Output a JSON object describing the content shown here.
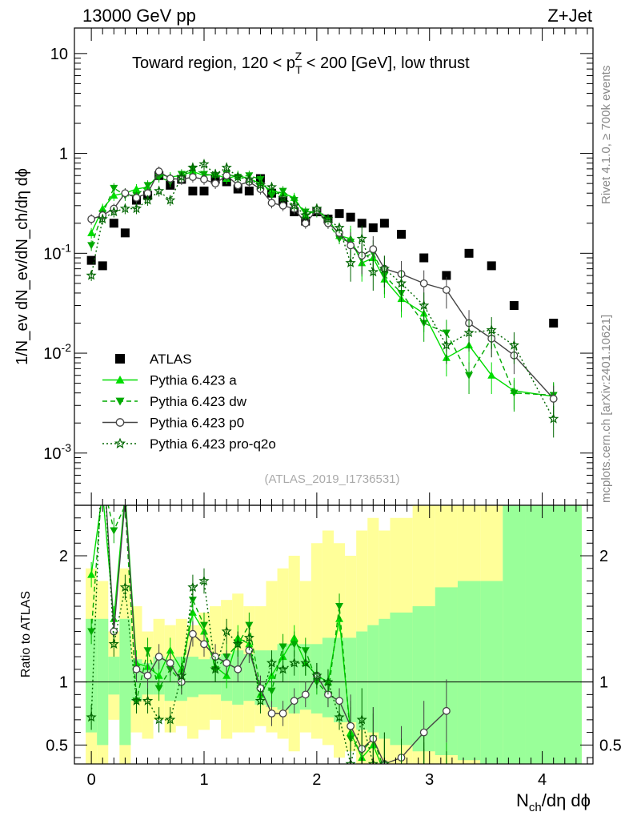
{
  "header": {
    "energy": "13000 GeV pp",
    "process": "Z+Jet"
  },
  "side_text": {
    "rivet": "Rivet 4.1.0, ≥ 700k events",
    "mcplots": "mcplots.cern.ch [arXiv:2401.10621]"
  },
  "chart_data": [
    {
      "type": "scatter",
      "panel": "main",
      "title_pre": "Toward region, 120 < p",
      "title_sub": "T",
      "title_sup": "Z",
      "title_post": " < 200 [GeV], low thrust",
      "ylabel": "1/N_ev dN_ev/dN_ch/dη dϕ",
      "yscale": "log",
      "ylim": [
        0.0003,
        18
      ],
      "xlim": [
        -0.15,
        4.45
      ],
      "yticks": [
        {
          "v": 10,
          "b": "10",
          "e": ""
        },
        {
          "v": 1,
          "b": "1",
          "e": ""
        },
        {
          "v": 0.1,
          "b": "10",
          "e": "-1"
        },
        {
          "v": 0.01,
          "b": "10",
          "e": "-2"
        },
        {
          "v": 0.001,
          "b": "10",
          "e": "-3"
        }
      ],
      "watermark": "(ATLAS_2019_I1736531)",
      "legend_position": "lower-left",
      "series": [
        {
          "name": "ATLAS",
          "style": "data",
          "color": "#000000",
          "x": [
            0,
            0.1,
            0.2,
            0.3,
            0.4,
            0.5,
            0.6,
            0.7,
            0.8,
            0.9,
            1.0,
            1.1,
            1.2,
            1.3,
            1.4,
            1.5,
            1.6,
            1.7,
            1.8,
            1.9,
            2.0,
            2.1,
            2.2,
            2.3,
            2.4,
            2.5,
            2.6,
            2.75,
            2.95,
            3.15,
            3.35,
            3.55,
            3.75,
            4.1
          ],
          "y": [
            0.085,
            0.075,
            0.2,
            0.16,
            0.34,
            0.38,
            0.6,
            0.48,
            0.55,
            0.42,
            0.42,
            0.55,
            0.52,
            0.44,
            0.42,
            0.56,
            0.4,
            0.33,
            0.26,
            0.21,
            0.26,
            0.22,
            0.25,
            0.23,
            0.2,
            0.18,
            0.2,
            0.155,
            0.09,
            0.06,
            0.1,
            0.075,
            0.03,
            0.02
          ]
        },
        {
          "name": "Pythia 6.423 a",
          "style": "line-triangle",
          "color": "#00dd00",
          "x": [
            0,
            0.1,
            0.2,
            0.3,
            0.4,
            0.5,
            0.6,
            0.7,
            0.8,
            0.9,
            1.0,
            1.1,
            1.2,
            1.3,
            1.4,
            1.5,
            1.6,
            1.7,
            1.8,
            1.9,
            2.0,
            2.1,
            2.2,
            2.3,
            2.4,
            2.5,
            2.6,
            2.75,
            2.95,
            3.15,
            3.35,
            3.55,
            3.75,
            4.1
          ],
          "y": [
            0.16,
            0.28,
            0.38,
            0.4,
            0.44,
            0.46,
            0.62,
            0.58,
            0.6,
            0.66,
            0.6,
            0.62,
            0.56,
            0.6,
            0.56,
            0.5,
            0.42,
            0.4,
            0.36,
            0.24,
            0.27,
            0.22,
            0.15,
            0.14,
            0.08,
            0.09,
            0.055,
            0.035,
            0.025,
            0.009,
            0.012,
            0.006,
            0.0042,
            0.0037
          ]
        },
        {
          "name": "Pythia 6.423 dw",
          "style": "dashed-invtriangle",
          "color": "#00aa00",
          "x": [
            0,
            0.1,
            0.2,
            0.3,
            0.4,
            0.5,
            0.6,
            0.7,
            0.8,
            0.9,
            1.0,
            1.1,
            1.2,
            1.3,
            1.4,
            1.5,
            1.6,
            1.7,
            1.8,
            1.9,
            2.0,
            2.1,
            2.2,
            2.3,
            2.4,
            2.5,
            2.6,
            2.75,
            2.95,
            3.15,
            3.35,
            3.55,
            3.75,
            4.1
          ],
          "y": [
            0.12,
            0.25,
            0.45,
            0.38,
            0.38,
            0.48,
            0.58,
            0.52,
            0.62,
            0.7,
            0.62,
            0.6,
            0.62,
            0.58,
            0.6,
            0.55,
            0.38,
            0.42,
            0.34,
            0.26,
            0.26,
            0.2,
            0.14,
            0.13,
            0.09,
            0.1,
            0.06,
            0.04,
            0.02,
            0.016,
            0.006,
            0.014,
            0.004,
            0.0038
          ]
        },
        {
          "name": "Pythia 6.423 p0",
          "style": "line-circle",
          "color": "#444444",
          "x": [
            0,
            0.1,
            0.2,
            0.3,
            0.4,
            0.5,
            0.6,
            0.7,
            0.8,
            0.9,
            1.0,
            1.1,
            1.2,
            1.3,
            1.4,
            1.5,
            1.6,
            1.7,
            1.8,
            1.9,
            2.0,
            2.1,
            2.2,
            2.3,
            2.4,
            2.5,
            2.6,
            2.75,
            2.95,
            3.15,
            3.35,
            3.55,
            3.75,
            4.1
          ],
          "y": [
            0.22,
            0.24,
            0.28,
            0.4,
            0.36,
            0.4,
            0.66,
            0.56,
            0.55,
            0.58,
            0.55,
            0.5,
            0.6,
            0.48,
            0.52,
            0.44,
            0.32,
            0.3,
            0.28,
            0.2,
            0.27,
            0.2,
            0.16,
            0.12,
            0.095,
            0.11,
            0.07,
            0.062,
            0.05,
            0.043,
            0.02,
            0.014,
            0.0095,
            0.0035
          ]
        },
        {
          "name": "Pythia 6.423 pro-q2o",
          "style": "dotted-star",
          "color": "#006600",
          "x": [
            0,
            0.1,
            0.2,
            0.3,
            0.4,
            0.5,
            0.6,
            0.7,
            0.8,
            0.9,
            1.0,
            1.1,
            1.2,
            1.3,
            1.4,
            1.5,
            1.6,
            1.7,
            1.8,
            1.9,
            2.0,
            2.1,
            2.2,
            2.3,
            2.4,
            2.5,
            2.6,
            2.75,
            2.95,
            3.15,
            3.35,
            3.55,
            3.75,
            4.1
          ],
          "y": [
            0.06,
            0.22,
            0.26,
            0.28,
            0.28,
            0.34,
            0.42,
            0.34,
            0.58,
            0.72,
            0.78,
            0.62,
            0.72,
            0.58,
            0.55,
            0.48,
            0.46,
            0.36,
            0.3,
            0.24,
            0.28,
            0.22,
            0.18,
            0.08,
            0.14,
            0.065,
            0.07,
            0.05,
            0.03,
            0.012,
            0.016,
            0.017,
            0.012,
            0.0022
          ]
        }
      ]
    },
    {
      "type": "scatter",
      "panel": "ratio",
      "ylabel": "Ratio to ATLAS",
      "xlabel_base": "N",
      "xlabel_sub": "ch",
      "xlabel_post": "/dη dϕ",
      "xlim": [
        -0.15,
        4.45
      ],
      "ylim": [
        0.35,
        2.4
      ],
      "xticks": [
        0,
        1,
        2,
        3,
        4
      ],
      "yticks": [
        {
          "v": 2,
          "label": "2"
        },
        {
          "v": 1,
          "label": "1"
        },
        {
          "v": 0.5,
          "label": "0.5"
        }
      ],
      "band_edges": [
        -0.05,
        0.05,
        0.15,
        0.25,
        0.35,
        0.45,
        0.55,
        0.65,
        0.75,
        0.85,
        0.95,
        1.05,
        1.15,
        1.25,
        1.35,
        1.45,
        1.55,
        1.65,
        1.75,
        1.85,
        1.95,
        2.05,
        2.15,
        2.25,
        2.35,
        2.45,
        2.55,
        2.65,
        2.85,
        3.05,
        3.25,
        3.45,
        3.65,
        3.85,
        4.35
      ],
      "band_green_lo": [
        0.6,
        0.5,
        0.9,
        0.5,
        0.85,
        0.9,
        0.9,
        0.85,
        0.85,
        0.88,
        0.9,
        0.9,
        0.85,
        0.82,
        0.85,
        0.82,
        0.8,
        0.78,
        0.75,
        0.78,
        0.75,
        0.72,
        0.68,
        0.68,
        0.62,
        0.6,
        0.55,
        0.5,
        0.45,
        0.42,
        0.38,
        0.3,
        0.35,
        0.2
      ],
      "band_green_hi": [
        1.5,
        1.5,
        1.2,
        1.5,
        1.18,
        1.15,
        1.2,
        1.18,
        1.2,
        1.2,
        1.18,
        1.2,
        1.22,
        1.25,
        1.22,
        1.25,
        1.25,
        1.3,
        1.3,
        1.3,
        1.3,
        1.35,
        1.35,
        1.35,
        1.4,
        1.45,
        1.5,
        1.55,
        1.6,
        1.75,
        1.8,
        1.8,
        2.5,
        2.5
      ],
      "band_yellow_lo": [
        0.3,
        0.35,
        0.7,
        0.3,
        0.6,
        0.55,
        0.7,
        0.6,
        0.65,
        0.55,
        0.62,
        0.7,
        0.55,
        0.6,
        0.6,
        0.65,
        0.6,
        0.55,
        0.45,
        0.6,
        0.55,
        0.5,
        0.4,
        0.45,
        0.3,
        0.25,
        0.3,
        0.2,
        0.2,
        0.15,
        0.15,
        0.2,
        0.2,
        0.1
      ],
      "band_yellow_hi": [
        1.9,
        1.8,
        1.4,
        1.9,
        1.6,
        1.4,
        1.5,
        1.45,
        1.5,
        1.45,
        1.55,
        1.6,
        1.65,
        1.7,
        1.6,
        1.6,
        1.8,
        1.9,
        2.0,
        1.8,
        2.1,
        2.2,
        2.1,
        2.0,
        2.2,
        2.3,
        2.2,
        2.3,
        2.4,
        2.4,
        2.4,
        2.4,
        2.6,
        2.6
      ],
      "ratio_series": [
        {
          "name": "Pythia 6.423 a",
          "style": "line-triangle",
          "color": "#00dd00",
          "x": [
            0,
            0.1,
            0.2,
            0.3,
            0.4,
            0.5,
            0.6,
            0.7,
            0.8,
            0.9,
            1.0,
            1.1,
            1.2,
            1.3,
            1.4,
            1.5,
            1.6,
            1.7,
            1.8,
            1.9,
            2.0,
            2.1,
            2.2,
            2.3,
            2.4,
            2.5,
            2.6,
            2.75,
            2.95,
            3.15
          ],
          "y": [
            1.85,
            2.5,
            1.5,
            2.5,
            1.15,
            1.12,
            1.05,
            1.25,
            1.1,
            1.55,
            1.4,
            1.12,
            1.05,
            1.35,
            1.3,
            0.9,
            1.05,
            1.2,
            1.35,
            1.15,
            1.05,
            1.0,
            1.5,
            0.6,
            0.4,
            0.5,
            0.28,
            0.22,
            0.27,
            0.15
          ]
        },
        {
          "name": "Pythia 6.423 dw",
          "style": "dashed-invtriangle",
          "color": "#00aa00",
          "x": [
            0,
            0.1,
            0.2,
            0.3,
            0.4,
            0.5,
            0.6,
            0.7,
            0.8,
            0.9,
            1.0,
            1.1,
            1.2,
            1.3,
            1.4,
            1.5,
            1.6,
            1.7,
            1.8,
            1.9,
            2.0,
            2.1,
            2.2,
            2.3,
            2.4,
            2.5,
            2.6,
            2.75,
            2.95,
            3.15
          ],
          "y": [
            1.4,
            2.6,
            2.2,
            2.4,
            0.85,
            1.25,
            0.95,
            1.1,
            1.0,
            1.65,
            1.45,
            1.1,
            1.2,
            1.3,
            1.45,
            0.95,
            0.93,
            1.28,
            1.3,
            1.25,
            1.0,
            0.9,
            1.6,
            0.55,
            0.45,
            0.55,
            0.3,
            0.26,
            0.22,
            0.27
          ]
        },
        {
          "name": "Pythia 6.423 p0",
          "style": "line-circle",
          "color": "#444444",
          "x": [
            0,
            0.1,
            0.2,
            0.3,
            0.4,
            0.5,
            0.6,
            0.7,
            0.8,
            0.9,
            1.0,
            1.1,
            1.2,
            1.3,
            1.4,
            1.5,
            1.6,
            1.7,
            1.8,
            1.9,
            2.0,
            2.1,
            2.2,
            2.3,
            2.4,
            2.5,
            2.6,
            2.75,
            2.95,
            3.15
          ],
          "y": [
            2.6,
            2.9,
            1.4,
            2.45,
            1.1,
            1.05,
            1.2,
            1.15,
            1.0,
            1.38,
            1.3,
            1.2,
            1.15,
            1.1,
            1.25,
            0.95,
            0.75,
            0.75,
            0.85,
            0.9,
            1.05,
            0.9,
            0.85,
            0.65,
            0.47,
            0.55,
            0.35,
            0.4,
            0.6,
            0.77
          ]
        },
        {
          "name": "Pythia 6.423 pro-q2o",
          "style": "dotted-star",
          "color": "#006600",
          "x": [
            0,
            0.1,
            0.2,
            0.3,
            0.4,
            0.5,
            0.6,
            0.7,
            0.8,
            0.9,
            1.0,
            1.1,
            1.2,
            1.3,
            1.4,
            1.5,
            1.6,
            1.7,
            1.8,
            1.9,
            2.0,
            2.1,
            2.2,
            2.3,
            2.4,
            2.5,
            2.6,
            2.75,
            2.95,
            3.15
          ],
          "y": [
            0.72,
            2.9,
            1.3,
            1.75,
            0.85,
            0.85,
            0.7,
            0.7,
            1.05,
            1.75,
            1.8,
            1.1,
            1.4,
            1.3,
            1.35,
            0.85,
            1.15,
            1.1,
            1.15,
            1.15,
            1.05,
            1.0,
            0.72,
            0.35,
            0.7,
            0.35,
            0.35,
            0.3,
            0.32,
            0.2
          ]
        }
      ]
    }
  ]
}
